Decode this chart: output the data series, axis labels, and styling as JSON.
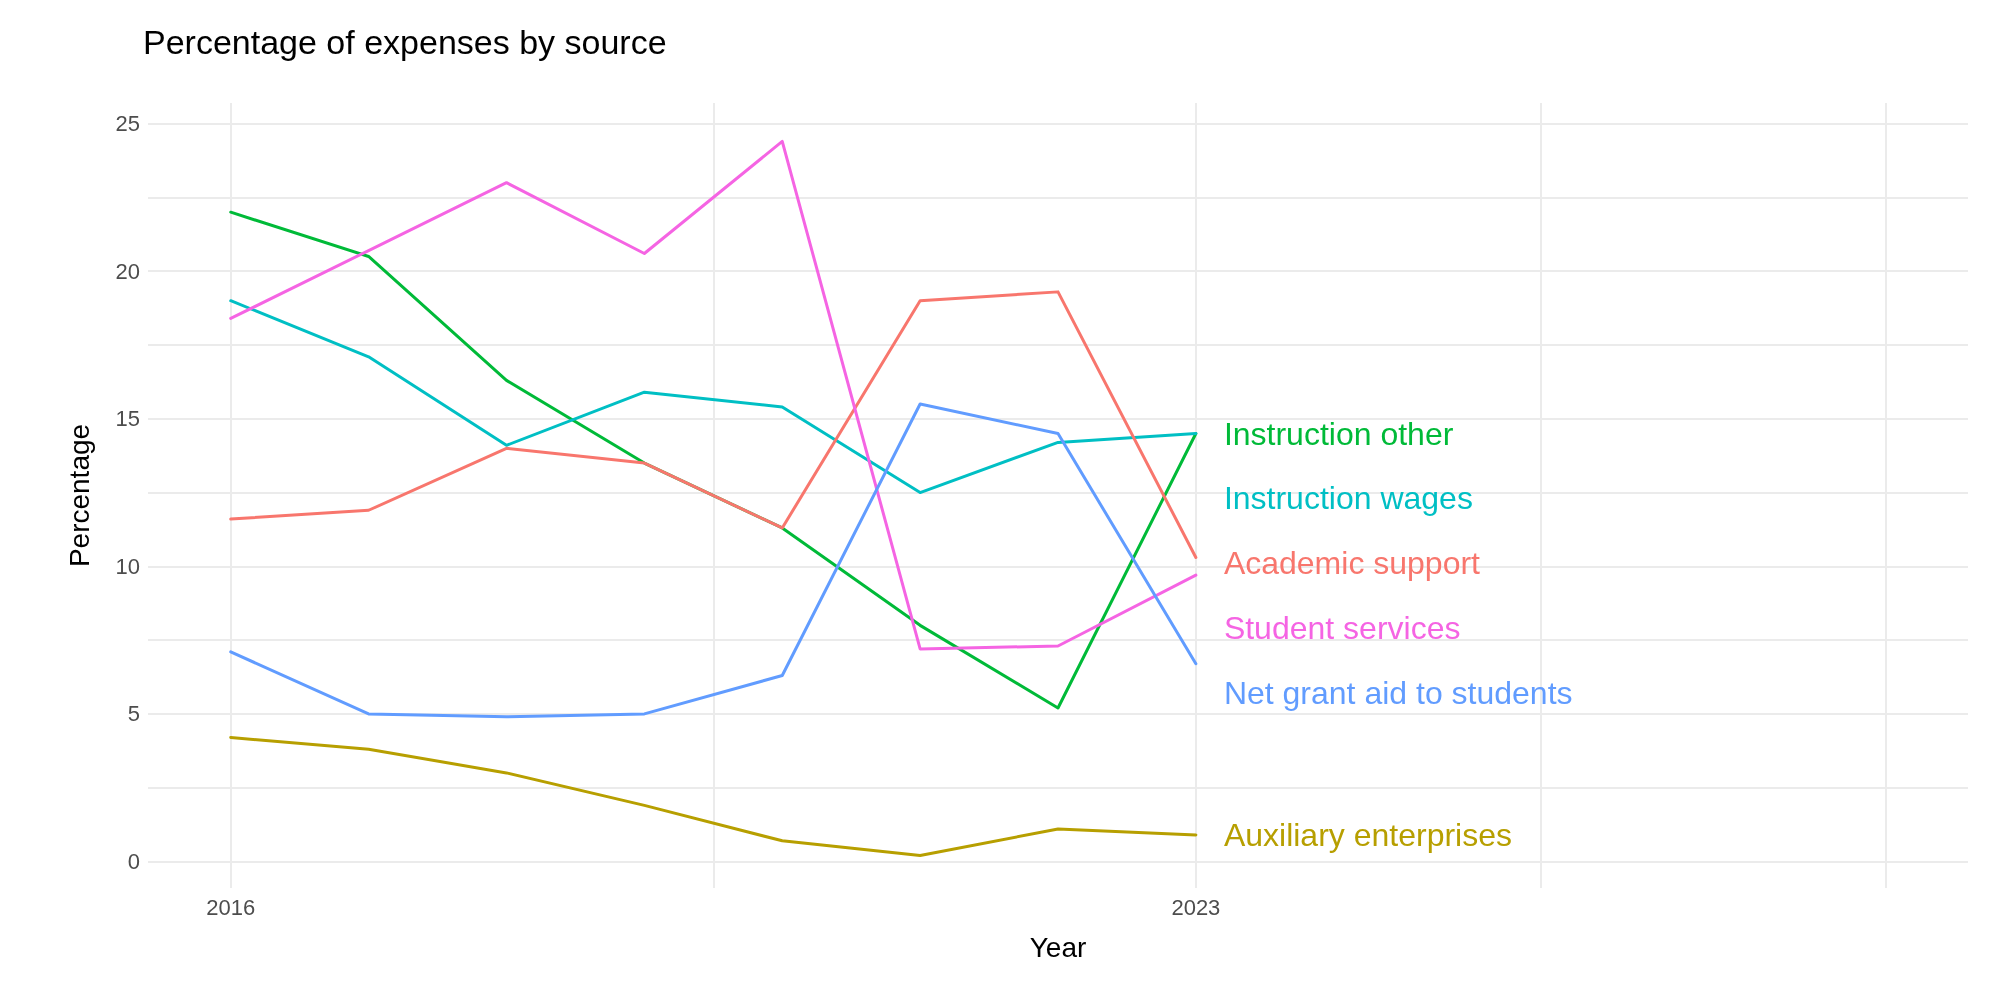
{
  "chart_data": {
    "type": "line",
    "title": "Percentage of expenses by source",
    "xlabel": "Year",
    "ylabel": "Percentage",
    "x": [
      2016,
      2017,
      2018,
      2019,
      2020,
      2021,
      2022,
      2023
    ],
    "series": [
      {
        "name": "Instruction other",
        "color": "#00ba38",
        "values": [
          22.0,
          20.5,
          16.3,
          13.5,
          11.3,
          8.0,
          5.2,
          14.5
        ]
      },
      {
        "name": "Instruction wages",
        "color": "#00bfc4",
        "values": [
          19.0,
          17.1,
          14.1,
          15.9,
          15.4,
          12.5,
          14.2,
          14.5
        ]
      },
      {
        "name": "Academic support",
        "color": "#f8766d",
        "values": [
          11.6,
          11.9,
          14.0,
          13.5,
          11.3,
          19.0,
          19.3,
          10.3
        ]
      },
      {
        "name": "Student services",
        "color": "#f564e3",
        "values": [
          18.4,
          20.7,
          23.0,
          20.6,
          24.4,
          7.2,
          7.3,
          9.7
        ]
      },
      {
        "name": "Net grant aid to students",
        "color": "#619cff",
        "values": [
          7.1,
          5.0,
          4.9,
          5.0,
          6.3,
          15.5,
          14.5,
          6.7
        ]
      },
      {
        "name": "Auxiliary enterprises",
        "color": "#b79f00",
        "values": [
          4.2,
          3.8,
          3.0,
          1.9,
          0.7,
          0.2,
          1.1,
          0.9
        ]
      }
    ],
    "xlim": [
      2015.4,
      2028.6
    ],
    "xticks": [
      2016,
      {
        "value": 2019.5,
        "label": null
      },
      2023,
      {
        "value": 2025.5,
        "label": null
      },
      {
        "value": 2028,
        "label": null
      }
    ],
    "ylim": [
      -0.9,
      25.7
    ],
    "yticks": [
      0,
      {
        "value": 2.5,
        "label": null
      },
      5,
      {
        "value": 7.5,
        "label": null
      },
      10,
      {
        "value": 12.5,
        "label": null
      },
      15,
      {
        "value": 17.5,
        "label": null
      },
      20,
      {
        "value": 22.5,
        "label": null
      },
      25
    ],
    "grid": true,
    "legend": false,
    "marker": "none",
    "line_style": "solid"
  }
}
